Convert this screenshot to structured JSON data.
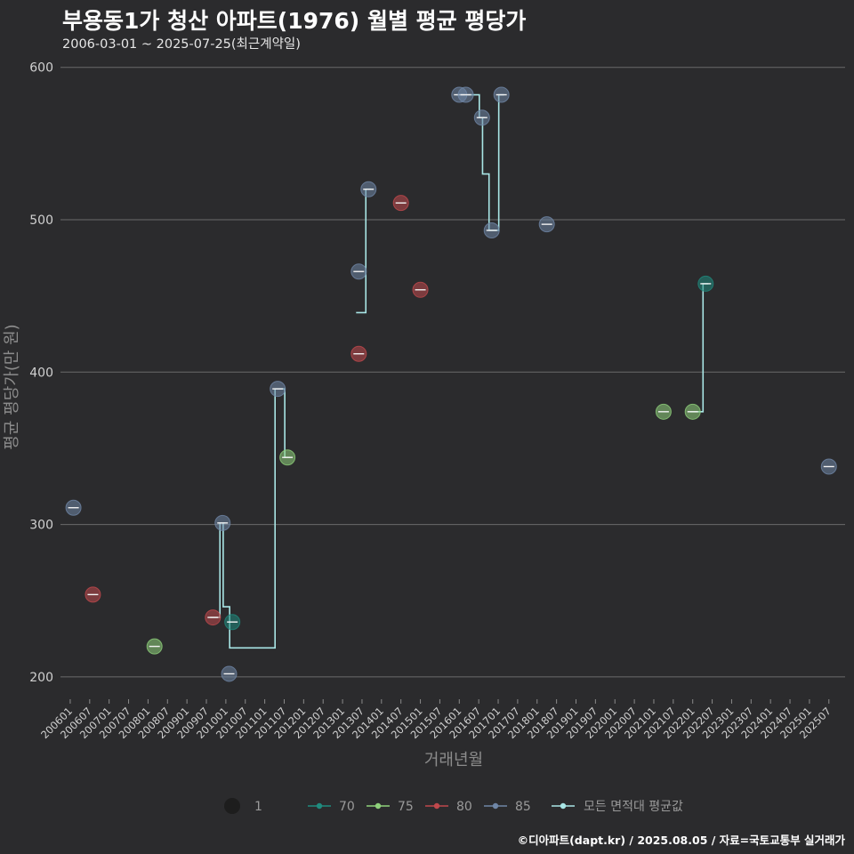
{
  "chart_data": {
    "type": "scatter",
    "title": "부용동1가 청산 아파트(1976) 월별 평균 평당가",
    "subtitle": "2006-03-01 ~ 2025-07-25(최근계약일)",
    "xlabel": "거래년월",
    "ylabel": "평균 평당가(만 원)",
    "caption": "©디아파트(dapt.kr) / 2025.08.05 / 자료=국토교통부 실거래가",
    "ylim": [
      190,
      615
    ],
    "yticks": [
      200,
      300,
      400,
      500,
      600
    ],
    "xlim": [
      "2005-10",
      "2025-12"
    ],
    "xticks": [
      "200601",
      "200607",
      "200701",
      "200707",
      "200801",
      "200807",
      "200901",
      "200907",
      "201001",
      "201007",
      "201101",
      "201107",
      "201201",
      "201207",
      "201301",
      "201307",
      "201401",
      "201407",
      "201501",
      "201507",
      "201601",
      "201607",
      "201701",
      "201707",
      "201801",
      "201807",
      "201901",
      "201907",
      "202001",
      "202007",
      "202101",
      "202107",
      "202201",
      "202207",
      "202301",
      "202307",
      "202401",
      "202407",
      "202501",
      "202507"
    ],
    "grid": true,
    "legend_position": "bottom",
    "legend": {
      "size_label": "1",
      "area_items": [
        {
          "label": "70",
          "color": "#1f8b7e"
        },
        {
          "label": "75",
          "color": "#8fd17b"
        },
        {
          "label": "80",
          "color": "#c0484c"
        },
        {
          "label": "85",
          "color": "#6f86a6"
        }
      ],
      "avg_label": "모든 면적대 평균값",
      "avg_color": "#a9e6e6"
    },
    "series": [
      {
        "name": "70",
        "color": "#1f8b7e",
        "points": [
          {
            "x": "2010-03",
            "y": 236
          },
          {
            "x": "2022-05",
            "y": 458
          }
        ]
      },
      {
        "name": "75",
        "color": "#8fd17b",
        "points": [
          {
            "x": "2008-03",
            "y": 220
          },
          {
            "x": "2011-08",
            "y": 344
          },
          {
            "x": "2021-04",
            "y": 374
          },
          {
            "x": "2022-01",
            "y": 374
          }
        ]
      },
      {
        "name": "80",
        "color": "#c0484c",
        "points": [
          {
            "x": "2006-08",
            "y": 254
          },
          {
            "x": "2009-09",
            "y": 239
          },
          {
            "x": "2013-06",
            "y": 412
          },
          {
            "x": "2014-07",
            "y": 511
          },
          {
            "x": "2015-01",
            "y": 454
          }
        ]
      },
      {
        "name": "85",
        "color": "#6f86a6",
        "points": [
          {
            "x": "2006-02",
            "y": 311
          },
          {
            "x": "2009-12",
            "y": 301
          },
          {
            "x": "2010-02",
            "y": 202
          },
          {
            "x": "2011-05",
            "y": 389
          },
          {
            "x": "2013-06",
            "y": 466
          },
          {
            "x": "2013-09",
            "y": 520
          },
          {
            "x": "2016-01",
            "y": 582
          },
          {
            "x": "2016-03",
            "y": 582
          },
          {
            "x": "2016-08",
            "y": 567
          },
          {
            "x": "2016-11",
            "y": 493
          },
          {
            "x": "2017-02",
            "y": 582
          },
          {
            "x": "2018-04",
            "y": 497
          },
          {
            "x": "2025-07",
            "y": 338
          }
        ]
      }
    ],
    "average_line": {
      "name": "모든 면적대 평균값",
      "color": "#a9e6e6",
      "points": [
        {
          "x": "2009-09",
          "y": 239
        },
        {
          "x": "2009-12",
          "y": 301
        },
        {
          "x": "2010-01",
          "y": 246
        },
        {
          "x": "2010-03",
          "y": 219
        },
        {
          "x": "2011-05",
          "y": 389
        },
        {
          "x": "2011-08",
          "y": 344
        },
        {
          "x": "2013-06",
          "y": 439
        },
        {
          "x": "2013-09",
          "y": 520
        },
        {
          "x": "2016-01",
          "y": 582
        },
        {
          "x": "2016-03",
          "y": 582
        },
        {
          "x": "2016-08",
          "y": 567
        },
        {
          "x": "2016-09",
          "y": 530
        },
        {
          "x": "2016-11",
          "y": 493
        },
        {
          "x": "2017-02",
          "y": 582
        },
        {
          "x": "2022-01",
          "y": 374
        },
        {
          "x": "2022-05",
          "y": 458
        }
      ]
    }
  }
}
